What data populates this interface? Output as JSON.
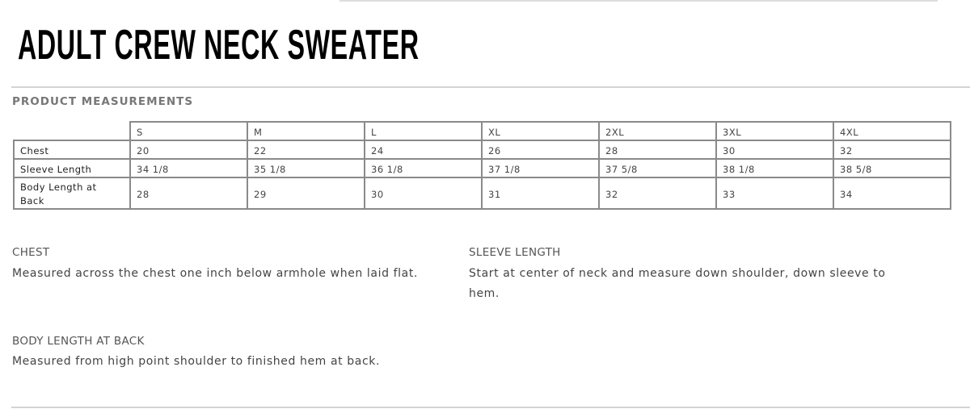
{
  "title": "ADULT CREW NECK SWEATER",
  "section_title": "PRODUCT MEASUREMENTS",
  "table": {
    "sizes": [
      "S",
      "M",
      "L",
      "XL",
      "2XL",
      "3XL",
      "4XL"
    ],
    "rows": [
      {
        "label": "Chest",
        "values": [
          "20",
          "22",
          "24",
          "26",
          "28",
          "30",
          "32"
        ]
      },
      {
        "label": "Sleeve Length",
        "values": [
          "34 1/8",
          "35 1/8",
          "36  1/8",
          "37 1/8",
          "37 5/8",
          "38  1/8",
          "38  5/8"
        ]
      },
      {
        "label": "Body Length at Back",
        "values": [
          "28",
          "29",
          "30",
          "31",
          "32",
          "33",
          "34"
        ]
      }
    ]
  },
  "notes": {
    "chest": {
      "heading": "CHEST",
      "text": "Measured across the chest one inch below armhole when laid flat."
    },
    "sleeve": {
      "heading": "SLEEVE LENGTH",
      "text": "Start at center of neck and measure down shoulder, down sleeve to hem."
    },
    "body": {
      "heading": "BODY LENGTH AT BACK",
      "text": "Measured from high point shoulder to finished hem at back."
    }
  }
}
